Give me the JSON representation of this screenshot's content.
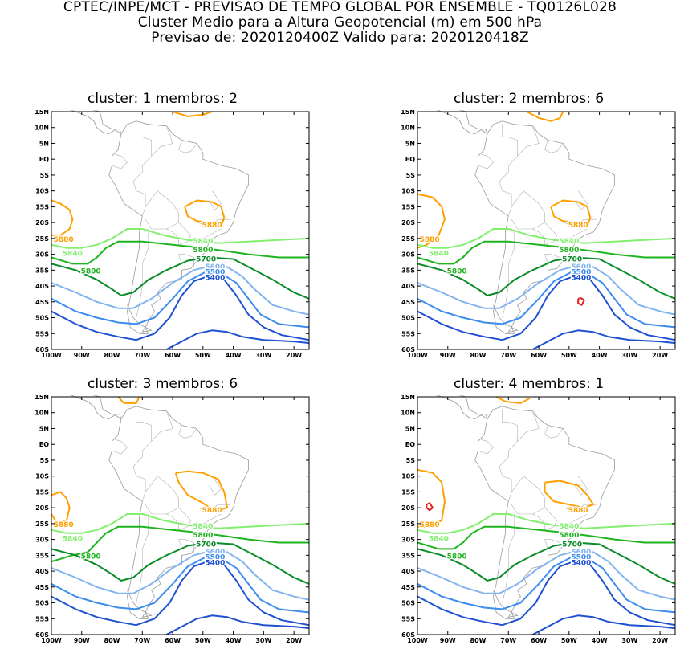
{
  "header": {
    "line1": "CPTEC/INPE/MCT - PREVISAO DE TEMPO GLOBAL POR ENSEMBLE - TQ0126L028",
    "line2": "Cluster Medio para a Altura Geopotencial (m) em 500 hPa",
    "line3": "Previsao de: 2020120400Z    Valido para: 2020120418Z"
  },
  "axes": {
    "lat_labels": [
      "15N",
      "10N",
      "5N",
      "EQ",
      "5S",
      "10S",
      "15S",
      "20S",
      "25S",
      "30S",
      "35S",
      "40S",
      "45S",
      "50S",
      "55S",
      "60S"
    ],
    "lon_labels": [
      "100W",
      "90W",
      "80W",
      "70W",
      "60W",
      "50W",
      "40W",
      "30W",
      "20W"
    ]
  },
  "contour_colors": {
    "5880": "#ffa000",
    "5840": "#82f06e",
    "5800": "#1eb41e",
    "5700": "#0a8c28",
    "5600": "#82b4f0",
    "5500": "#3c8cf0",
    "5400": "#1e50d2",
    "low": "#e02020"
  },
  "panels": [
    {
      "title": "cluster: 1   membros: 2",
      "labels": [
        "5880",
        "5840",
        "5800",
        "5700",
        "5600",
        "5500",
        "5400"
      ]
    },
    {
      "title": "cluster: 2   membros: 6",
      "labels": [
        "5880",
        "5840",
        "5800",
        "5700",
        "5600",
        "5500",
        "5400"
      ]
    },
    {
      "title": "cluster: 3   membros: 6",
      "labels": [
        "5880",
        "5840",
        "5800",
        "5700",
        "5600",
        "5500",
        "5400"
      ]
    },
    {
      "title": "cluster: 4   membros: 1",
      "labels": [
        "5880",
        "5840",
        "5800",
        "5700",
        "5600",
        "5500",
        "5400"
      ]
    }
  ]
}
